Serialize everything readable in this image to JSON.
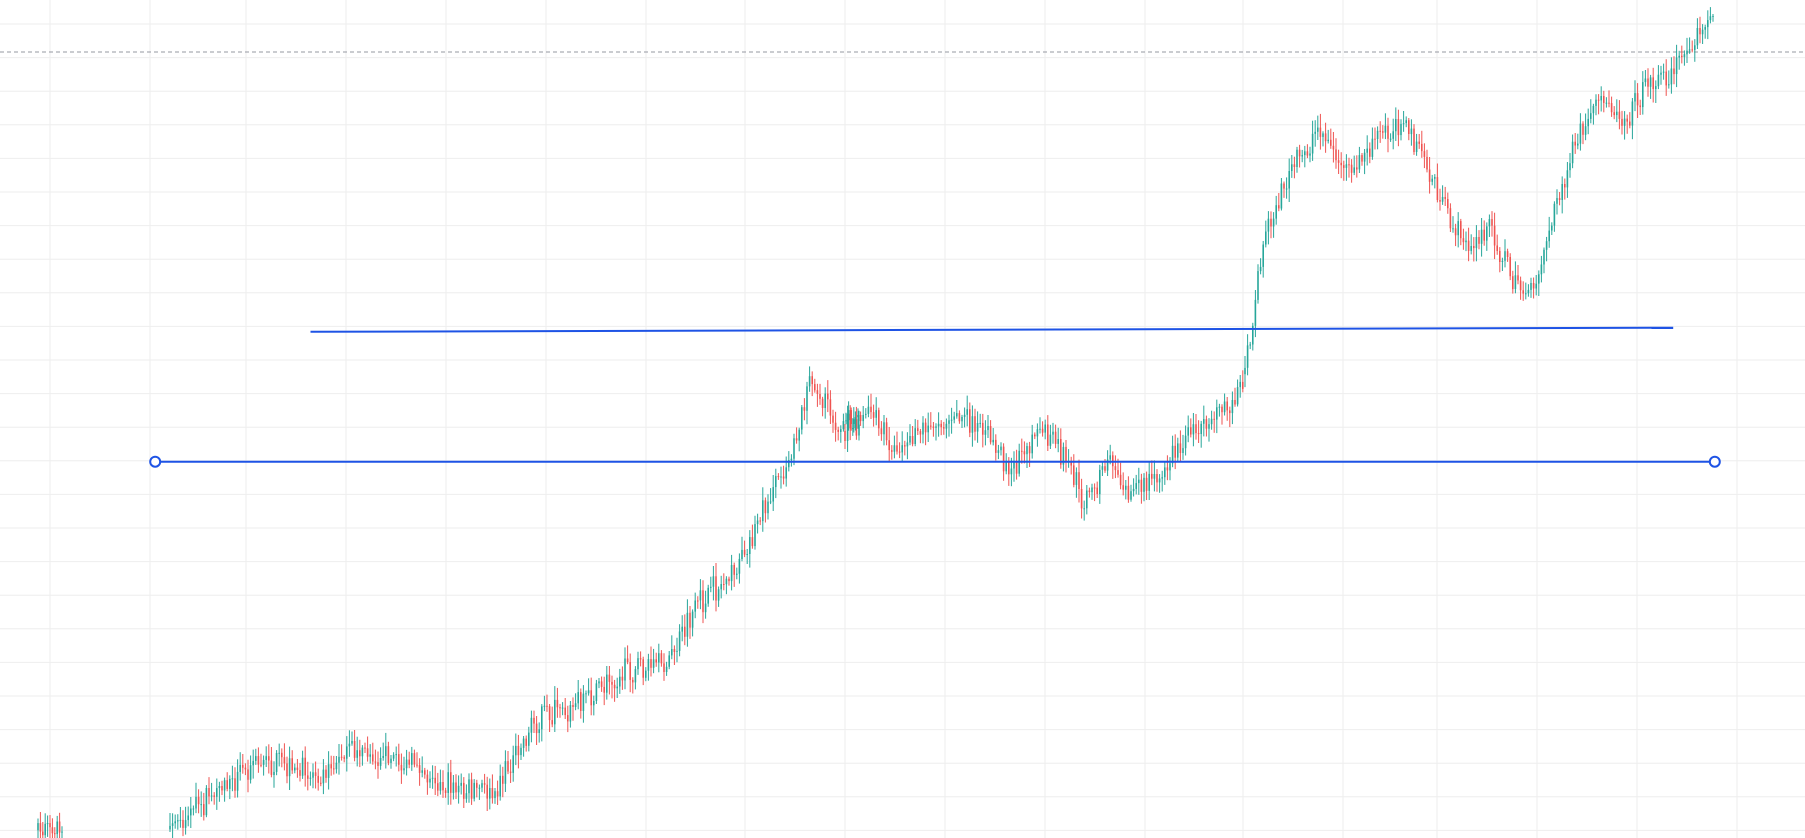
{
  "chart_data": {
    "type": "candlestick",
    "grid": true,
    "colors": {
      "up": "#26a69a",
      "down": "#ef5350",
      "grid": "#eeeeee",
      "trendline": "#1e53e5",
      "crosshair": "#9598a1"
    },
    "price_path": [
      [
        0.0,
        8
      ],
      [
        0.06,
        6
      ],
      [
        0.09,
        0
      ],
      [
        0.15,
        35
      ],
      [
        0.2,
        85
      ],
      [
        0.25,
        55
      ],
      [
        0.3,
        80
      ],
      [
        0.35,
        75
      ],
      [
        0.4,
        40
      ],
      [
        0.45,
        55
      ],
      [
        0.5,
        110
      ],
      [
        0.56,
        165
      ],
      [
        0.63,
        250
      ],
      [
        0.66,
        215
      ],
      [
        0.69,
        300
      ],
      [
        0.72,
        370
      ],
      [
        0.75,
        375
      ],
      [
        0.78,
        320
      ],
      [
        0.8,
        360
      ],
      [
        0.85,
        280
      ],
      [
        0.87,
        345
      ],
      [
        0.9,
        300
      ],
      [
        0.93,
        340
      ],
      [
        0.96,
        260
      ],
      [
        1.0,
        340
      ]
    ],
    "price_path_2": [
      [
        0.0,
        340
      ],
      [
        0.04,
        390
      ],
      [
        0.07,
        500
      ],
      [
        0.1,
        610
      ],
      [
        0.14,
        640
      ],
      [
        0.17,
        590
      ],
      [
        0.21,
        660
      ],
      [
        0.26,
        640
      ],
      [
        0.3,
        560
      ],
      [
        0.33,
        450
      ],
      [
        0.37,
        490
      ],
      [
        0.42,
        440
      ],
      [
        0.46,
        550
      ],
      [
        0.52,
        600
      ],
      [
        0.57,
        640
      ],
      [
        0.61,
        660
      ],
      [
        0.65,
        615
      ],
      [
        0.7,
        680
      ],
      [
        0.75,
        700
      ],
      [
        0.82,
        820
      ]
    ],
    "trendlines": [
      {
        "name": "resistance-line",
        "from": 0.172,
        "to": 0.927,
        "y_from": 0.396,
        "y_to": 0.391,
        "handles": false
      },
      {
        "name": "support-line",
        "from": 0.086,
        "to": 0.95,
        "y_from": 0.551,
        "y_to": 0.551,
        "handles": true
      }
    ],
    "crosshair_level": 0.062
  }
}
